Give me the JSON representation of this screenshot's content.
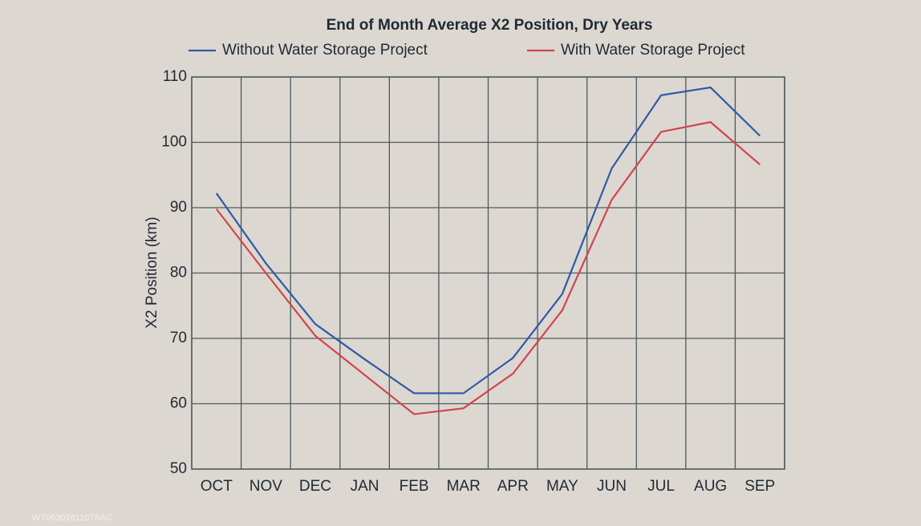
{
  "chart_data": {
    "type": "line",
    "title": "End of Month Average X2 Position, Dry Years",
    "y_label": "X2 Position (km)",
    "categories": [
      "OCT",
      "NOV",
      "DEC",
      "JAN",
      "FEB",
      "MAR",
      "APR",
      "MAY",
      "JUN",
      "JUL",
      "AUG",
      "SEP"
    ],
    "series": [
      {
        "name": "Without Water Storage Project",
        "color": "#2f5aa6",
        "values": [
          92.2,
          81.5,
          72.2,
          66.8,
          61.6,
          61.6,
          67.0,
          76.8,
          96.0,
          107.2,
          108.4,
          101.0
        ]
      },
      {
        "name": "With Water Storage Project",
        "color": "#d0464c",
        "values": [
          89.8,
          80.0,
          70.4,
          64.4,
          58.4,
          59.3,
          64.6,
          74.3,
          91.2,
          101.6,
          103.1,
          96.6
        ]
      }
    ],
    "ylim": [
      50,
      110
    ],
    "yticks": [
      50,
      60,
      70,
      80,
      90,
      100,
      110
    ],
    "grid": true
  },
  "footer_note": "WT0630161107SAC"
}
